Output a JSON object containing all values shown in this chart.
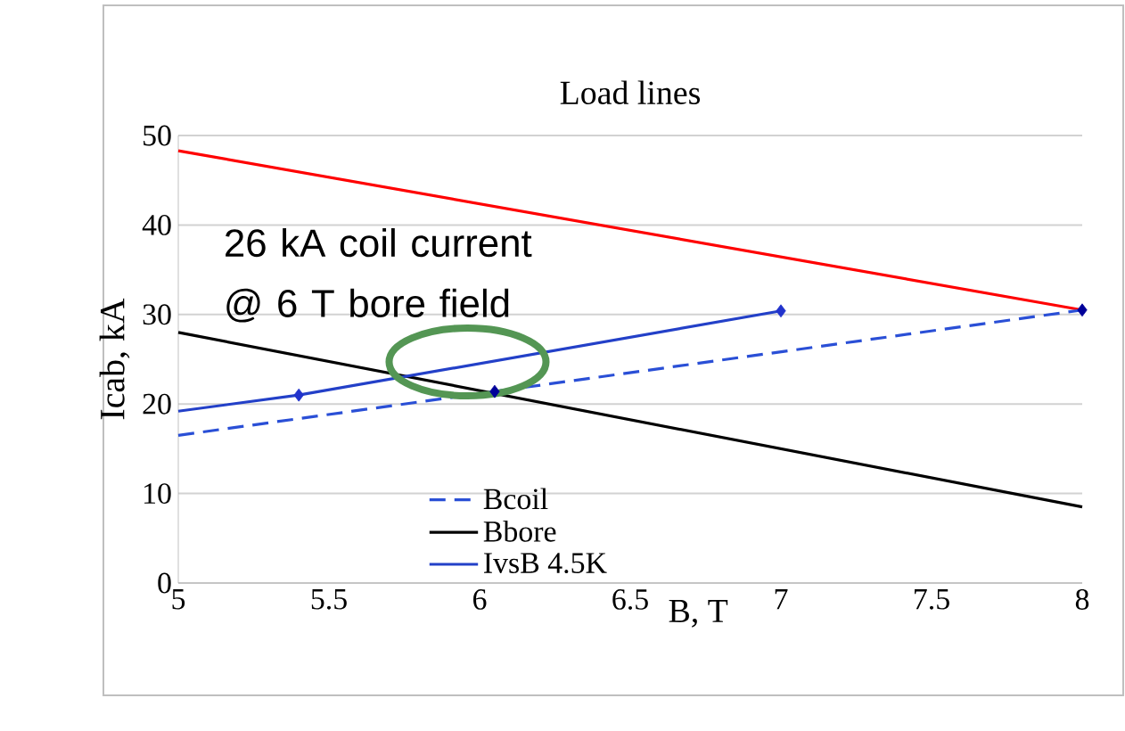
{
  "chart_data": {
    "type": "line",
    "title": "Load lines",
    "xlabel": "B, T",
    "ylabel": "Icab, kA",
    "xlim": [
      5,
      8
    ],
    "ylim": [
      0,
      50
    ],
    "xticks": [
      5,
      5.5,
      6,
      6.5,
      7,
      7.5,
      8
    ],
    "yticks": [
      0,
      10,
      20,
      30,
      40,
      50
    ],
    "grid": "y",
    "legend": "bottom left",
    "annotations": [
      {
        "text": "26 kA coil current @ 6 T bore field",
        "x": 5.96,
        "y": 24.7
      }
    ],
    "series": [
      {
        "color": "#ff0000",
        "x": [
          5,
          8
        ],
        "values": [
          48.3,
          30.5
        ]
      },
      {
        "name": "Bcoil",
        "color": "#2a4fd6",
        "line_style": "dashed",
        "x": [
          5,
          8
        ],
        "values": [
          16.5,
          30.5
        ]
      },
      {
        "name": "Bbore",
        "color": "#000000",
        "x": [
          5,
          8
        ],
        "values": [
          28,
          8.5
        ]
      },
      {
        "name": "IvsB 4.5K",
        "color": "#2340c8",
        "x": [
          5,
          5.4,
          7
        ],
        "values": [
          19.2,
          21,
          30.4
        ]
      },
      {
        "type": "scatter",
        "marker": "diamond",
        "color": "#2233cc",
        "x": [
          5.4,
          7
        ],
        "values": [
          21,
          30.4
        ]
      },
      {
        "type": "scatter",
        "marker": "diamond",
        "color": "#000099",
        "x": [
          6.05,
          8
        ],
        "values": [
          21.4,
          30.5
        ]
      }
    ]
  }
}
